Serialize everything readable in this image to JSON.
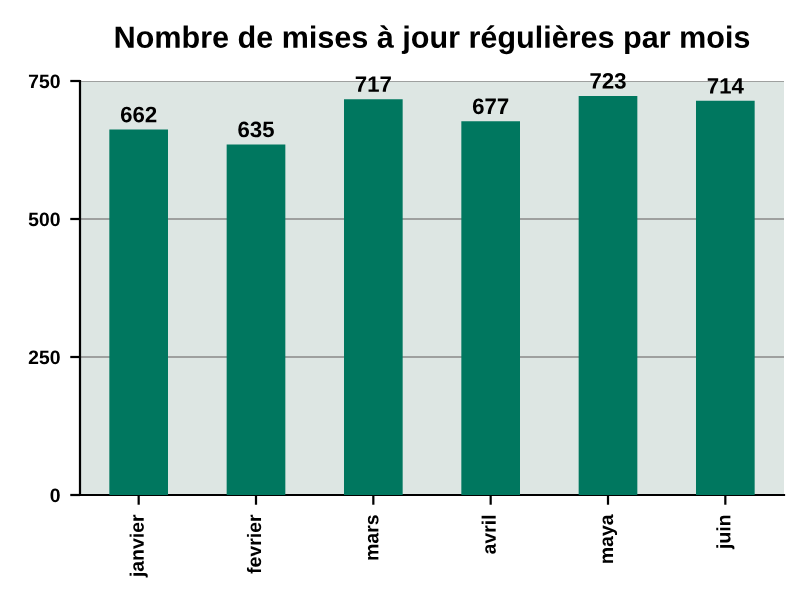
{
  "chart_data": {
    "type": "bar",
    "title": "Nombre de mises à jour régulières par mois",
    "categories": [
      "janvier",
      "fevrier",
      "mars",
      "avril",
      "maya",
      "juin"
    ],
    "values": [
      662,
      635,
      717,
      677,
      723,
      714
    ],
    "color": "#00775f",
    "ylim": [
      0,
      750
    ],
    "yticks": [
      0,
      250,
      500,
      750
    ],
    "grid": "y",
    "data_labels": true
  }
}
